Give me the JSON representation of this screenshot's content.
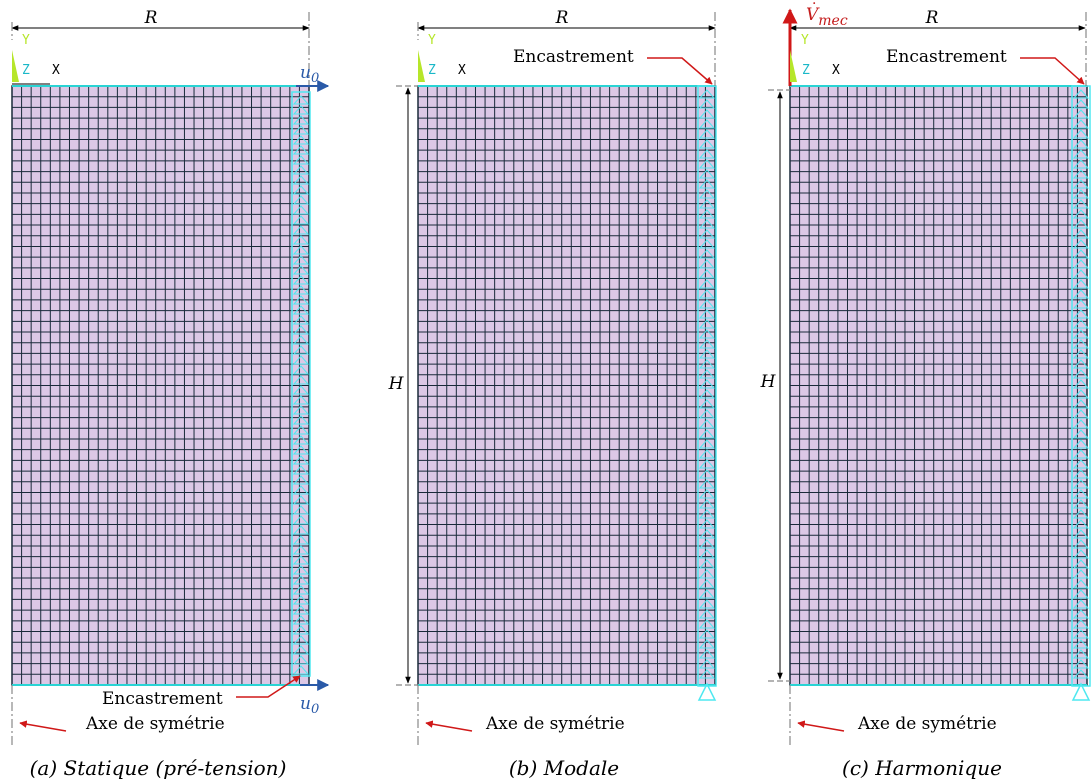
{
  "panels": [
    {
      "key": "a",
      "caption": "(a) Statique (pré-tension)",
      "R_label": "R",
      "H_label": "",
      "encastrement_label": "Encastrement",
      "axis_label": "Axe de symétrie",
      "load_labels": [
        "u",
        "0"
      ],
      "load_bottom_labels": [
        "u",
        "0"
      ],
      "vel_label": [
        "",
        ""
      ],
      "triad": {
        "y": "Y",
        "z": "Z",
        "x": "X"
      }
    },
    {
      "key": "b",
      "caption": "(b) Modale",
      "R_label": "R",
      "H_label": "H",
      "encastrement_label": "Encastrement",
      "axis_label": "Axe de symétrie",
      "load_labels": [
        "",
        ""
      ],
      "load_bottom_labels": [
        "",
        ""
      ],
      "vel_label": [
        "",
        ""
      ],
      "triad": {
        "y": "Y",
        "z": "Z",
        "x": "X"
      }
    },
    {
      "key": "c",
      "caption": "(c) Harmonique",
      "R_label": "R",
      "H_label": "H",
      "encastrement_label": "Encastrement",
      "axis_label": "Axe de symétrie",
      "load_labels": [
        "",
        ""
      ],
      "load_bottom_labels": [
        "",
        ""
      ],
      "vel_label": [
        "V",
        "mec"
      ],
      "triad": {
        "y": "Y",
        "z": "Z",
        "x": "X"
      }
    }
  ],
  "colors": {
    "mesh_fill": "#dcc8e6",
    "mesh_line": "#1a2a3a",
    "edge_cyan": "#2ad4d4",
    "support_cyan": "#4fe8f0",
    "arrow_blue": "#2a5aa8",
    "arrow_red": "#d01818",
    "label_red": "#c41c1c",
    "triad_green": "#b6e62a",
    "triad_cyan": "#1ab8c8"
  }
}
